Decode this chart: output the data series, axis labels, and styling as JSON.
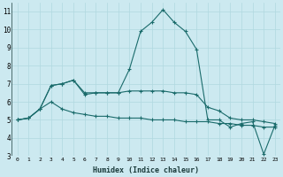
{
  "title": "",
  "xlabel": "Humidex (Indice chaleur)",
  "ylabel": "",
  "bg_color": "#cce9f0",
  "line_color": "#1a6b6b",
  "grid_color": "#b0d8e0",
  "xlim": [
    -0.5,
    23.5
  ],
  "ylim": [
    3,
    11.5
  ],
  "xticks": [
    0,
    1,
    2,
    3,
    4,
    5,
    6,
    7,
    8,
    9,
    10,
    11,
    12,
    13,
    14,
    15,
    16,
    17,
    18,
    19,
    20,
    21,
    22,
    23
  ],
  "yticks": [
    3,
    4,
    5,
    6,
    7,
    8,
    9,
    10,
    11
  ],
  "series": [
    {
      "x": [
        0,
        1,
        2,
        3,
        4,
        5,
        6,
        7,
        8,
        9,
        10,
        11,
        12,
        13,
        14,
        15,
        16,
        17,
        18,
        19,
        20,
        21,
        22,
        23
      ],
      "y": [
        5.0,
        5.1,
        5.6,
        6.9,
        7.0,
        7.2,
        6.4,
        6.5,
        6.5,
        6.5,
        7.8,
        9.9,
        10.4,
        11.1,
        10.4,
        9.9,
        8.9,
        5.0,
        5.0,
        4.6,
        4.8,
        4.9,
        3.1,
        4.7
      ]
    },
    {
      "x": [
        0,
        1,
        2,
        3,
        4,
        5,
        6,
        7,
        8,
        9,
        10,
        11,
        12,
        13,
        14,
        15,
        16,
        17,
        18,
        19,
        20,
        21,
        22,
        23
      ],
      "y": [
        5.0,
        5.1,
        5.6,
        6.9,
        7.0,
        7.2,
        6.5,
        6.5,
        6.5,
        6.5,
        6.6,
        6.6,
        6.6,
        6.6,
        6.5,
        6.5,
        6.4,
        5.7,
        5.5,
        5.1,
        5.0,
        5.0,
        4.9,
        4.8
      ]
    },
    {
      "x": [
        0,
        1,
        2,
        3,
        4,
        5,
        6,
        7,
        8,
        9,
        10,
        11,
        12,
        13,
        14,
        15,
        16,
        17,
        18,
        19,
        20,
        21,
        22,
        23
      ],
      "y": [
        5.0,
        5.1,
        5.6,
        6.0,
        5.6,
        5.4,
        5.3,
        5.2,
        5.2,
        5.1,
        5.1,
        5.1,
        5.0,
        5.0,
        5.0,
        4.9,
        4.9,
        4.9,
        4.8,
        4.8,
        4.7,
        4.7,
        4.6,
        4.6
      ]
    }
  ]
}
